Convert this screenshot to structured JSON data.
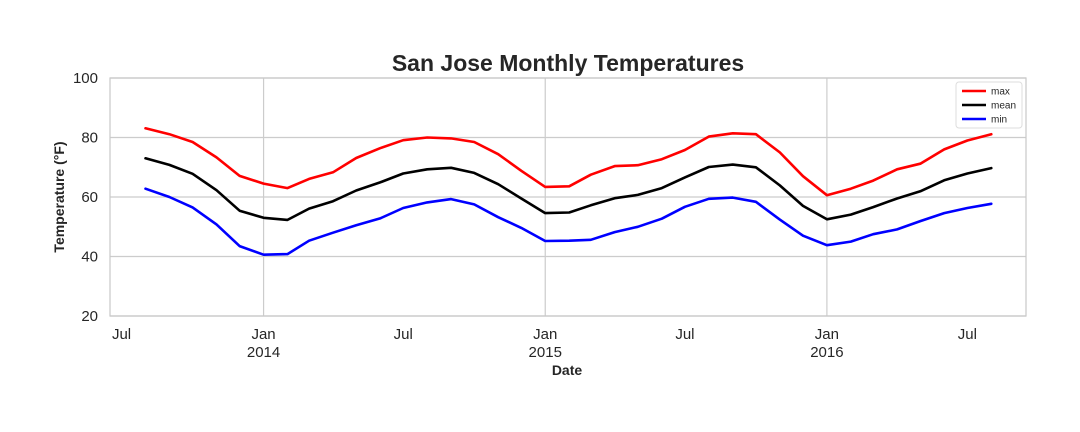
{
  "chart_data": {
    "type": "line",
    "title": "San Jose Monthly Temperatures",
    "xlabel": "Date",
    "ylabel": "Temperature (°F)",
    "ylim": [
      20,
      100
    ],
    "xlim": [
      "2013-06-16",
      "2016-09-15"
    ],
    "y_ticks": [
      20,
      40,
      60,
      80,
      100
    ],
    "x_ticks": [
      {
        "date": "2013-07-01",
        "label": "Jul",
        "sublabel": ""
      },
      {
        "date": "2014-01-01",
        "label": "Jan",
        "sublabel": "2014"
      },
      {
        "date": "2014-07-01",
        "label": "Jul",
        "sublabel": ""
      },
      {
        "date": "2015-01-01",
        "label": "Jan",
        "sublabel": "2015"
      },
      {
        "date": "2015-07-01",
        "label": "Jul",
        "sublabel": ""
      },
      {
        "date": "2016-01-01",
        "label": "Jan",
        "sublabel": "2016"
      },
      {
        "date": "2016-07-01",
        "label": "Jul",
        "sublabel": ""
      }
    ],
    "grid": true,
    "legend": "top-right",
    "x": [
      "2013-08-01",
      "2013-09-01",
      "2013-10-01",
      "2013-11-01",
      "2013-12-01",
      "2014-01-01",
      "2014-02-01",
      "2014-03-01",
      "2014-04-01",
      "2014-05-01",
      "2014-06-01",
      "2014-07-01",
      "2014-08-01",
      "2014-09-01",
      "2014-10-01",
      "2014-11-01",
      "2014-12-01",
      "2015-01-01",
      "2015-02-01",
      "2015-03-01",
      "2015-04-01",
      "2015-05-01",
      "2015-06-01",
      "2015-07-01",
      "2015-08-01",
      "2015-09-01",
      "2015-10-01",
      "2015-11-01",
      "2015-12-01",
      "2016-01-01",
      "2016-02-01",
      "2016-03-01",
      "2016-04-01",
      "2016-05-01",
      "2016-06-01",
      "2016-07-01",
      "2016-08-01"
    ],
    "series": [
      {
        "name": "max",
        "color": "#ff0000",
        "values": [
          83.1,
          81.1,
          78.5,
          73.3,
          67.1,
          64.5,
          63.0,
          66.1,
          68.3,
          73.1,
          76.4,
          79.1,
          80.0,
          79.7,
          78.5,
          74.4,
          68.8,
          63.4,
          63.6,
          67.5,
          70.4,
          70.7,
          72.7,
          75.8,
          80.3,
          81.4,
          81.1,
          75.0,
          67.0,
          60.6,
          62.8,
          65.5,
          69.3,
          71.2,
          76.0,
          79.0,
          81.1
        ]
      },
      {
        "name": "mean",
        "color": "#000000",
        "values": [
          73.0,
          70.8,
          67.8,
          62.3,
          55.4,
          53.0,
          52.3,
          56.1,
          58.6,
          62.2,
          64.9,
          67.9,
          69.3,
          69.8,
          68.1,
          64.3,
          59.5,
          54.6,
          54.8,
          57.2,
          59.6,
          60.7,
          63.0,
          66.6,
          70.1,
          70.9,
          70.0,
          63.9,
          57.0,
          52.5,
          54.1,
          56.6,
          59.5,
          61.9,
          65.6,
          67.9,
          69.7
        ]
      },
      {
        "name": "min",
        "color": "#0000ff",
        "values": [
          62.8,
          60.0,
          56.5,
          50.8,
          43.5,
          40.6,
          40.8,
          45.3,
          48.0,
          50.5,
          52.8,
          56.3,
          58.2,
          59.3,
          57.5,
          53.2,
          49.6,
          45.2,
          45.3,
          45.6,
          48.2,
          50.0,
          52.7,
          56.7,
          59.4,
          59.8,
          58.4,
          52.4,
          47.0,
          43.8,
          45.0,
          47.5,
          49.1,
          51.9,
          54.6,
          56.3,
          57.7
        ]
      }
    ]
  }
}
